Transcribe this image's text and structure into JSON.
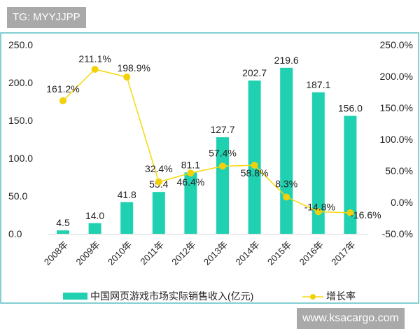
{
  "watermarks": {
    "top_left": "TG: MYYJJPP",
    "bottom_right": "www.ksacargo.com"
  },
  "chart_data": {
    "type": "bar+line",
    "categories": [
      "2008年",
      "2009年",
      "2010年",
      "2011年",
      "2012年",
      "2013年",
      "2014年",
      "2015年",
      "2016年",
      "2017年"
    ],
    "series": [
      {
        "name": "中国网页游戏市场实际销售收入(亿元)",
        "type": "bar",
        "axis": "left",
        "color": "#1fd1b0",
        "values": [
          4.5,
          14.0,
          41.8,
          55.4,
          81.1,
          127.7,
          202.7,
          219.6,
          187.1,
          156.0
        ],
        "labels": [
          "4.5",
          "14.0",
          "41.8",
          "55.4",
          "81.1",
          "127.7",
          "202.7",
          "219.6",
          "187.1",
          "156.0"
        ]
      },
      {
        "name": "增长率",
        "type": "line",
        "axis": "right",
        "color": "#f5d90a",
        "values": [
          161.2,
          211.1,
          198.9,
          32.4,
          46.4,
          57.4,
          58.8,
          8.3,
          -14.8,
          -16.6
        ],
        "labels": [
          "161.2%",
          "211.1%",
          "198.9%",
          "32.4%",
          "46.4%",
          "57.4%",
          "58.8%",
          "8.3%",
          "-14.8%",
          "-16.6%"
        ]
      }
    ],
    "left_axis": {
      "ylim": [
        0,
        250
      ],
      "ticks": [
        "0.0",
        "50.0",
        "100.0",
        "150.0",
        "200.0",
        "250.0"
      ]
    },
    "right_axis": {
      "ylim": [
        -50,
        250
      ],
      "ticks": [
        "-50.0%",
        "0.0%",
        "50.0%",
        "100.0%",
        "150.0%",
        "200.0%",
        "250.0%"
      ]
    },
    "grid": false,
    "legend": "bottom",
    "border_color": "#5bbfc0"
  }
}
